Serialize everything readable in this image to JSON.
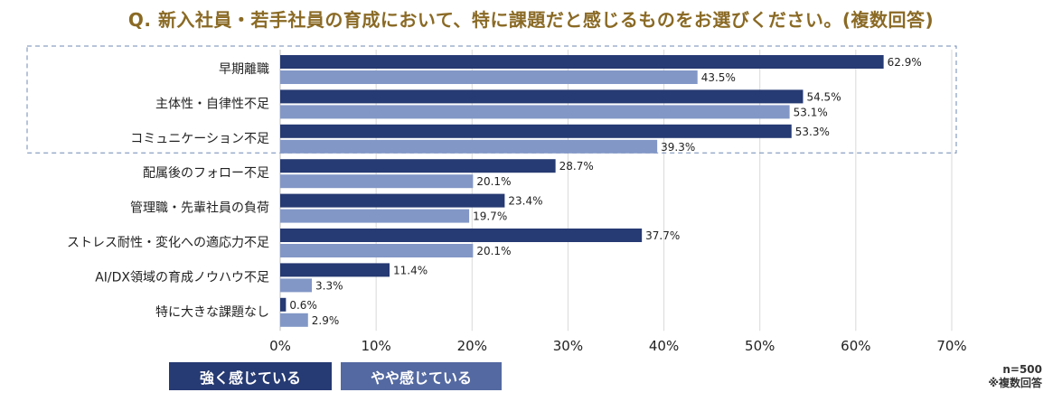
{
  "title": "Q. 新入社員・若手社員の育成において、特に課題だと感じるものをお選びください。(複数回答)",
  "colors": {
    "title": "#8a6a25",
    "strong": "#263a73",
    "somewhat": "#8297c6",
    "legend_somewhat": "#5469a1",
    "highlight_border": "#6f88b3",
    "grid": "#d9d9d9"
  },
  "chart_data": {
    "type": "bar",
    "orientation": "horizontal",
    "categories": [
      "早期離職",
      "主体性・自律性不足",
      "コミュニケーション不足",
      "配属後のフォロー不足",
      "管理職・先輩社員の負荷",
      "ストレス耐性・変化への適応力不足",
      "AI/DX領域の育成ノウハウ不足",
      "特に大きな課題なし"
    ],
    "series": [
      {
        "name": "強く感じている",
        "values": [
          62.9,
          54.5,
          53.3,
          28.7,
          23.4,
          37.7,
          11.4,
          0.6
        ]
      },
      {
        "name": "やや感じている",
        "values": [
          43.5,
          53.1,
          39.3,
          20.1,
          19.7,
          20.1,
          3.3,
          2.9
        ]
      }
    ],
    "xlim": [
      0,
      70
    ],
    "xticks": [
      "0%",
      "10%",
      "20%",
      "30%",
      "40%",
      "50%",
      "60%",
      "70%"
    ],
    "value_suffix": "%",
    "grid": true,
    "legend_position": "bottom-left",
    "highlighted_categories": 3
  },
  "notes": [
    "n=500",
    "※複数回答"
  ]
}
